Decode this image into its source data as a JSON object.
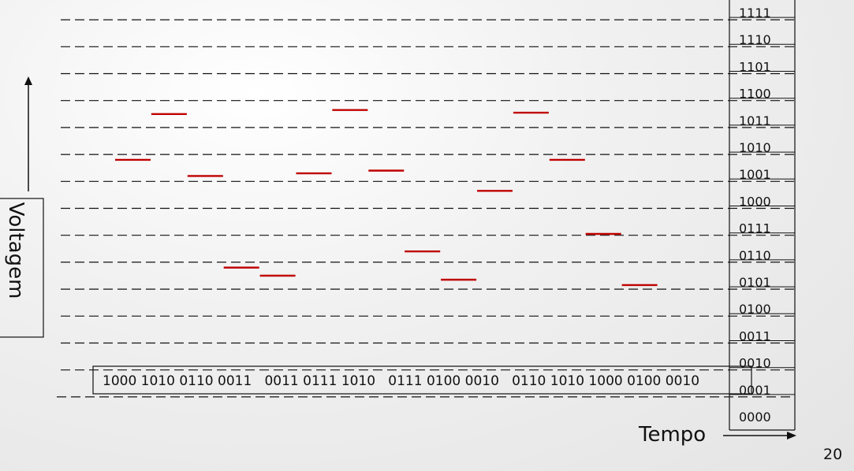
{
  "levels": [
    "0000",
    "0001",
    "0010",
    "0011",
    "0100",
    "0101",
    "0110",
    "0111",
    "1000",
    "1001",
    "1010",
    "1011",
    "1100",
    "1101",
    "1110",
    "1111"
  ],
  "samples": [
    {
      "value": 9.3
    },
    {
      "value": 11.0
    },
    {
      "value": 8.7
    },
    {
      "value": 5.3
    },
    {
      "value": 5.0
    },
    {
      "value": 8.8
    },
    {
      "value": 11.15
    },
    {
      "value": 8.9
    },
    {
      "value": 5.9
    },
    {
      "value": 4.85
    },
    {
      "value": 8.15
    },
    {
      "value": 11.05
    },
    {
      "value": 9.3
    },
    {
      "value": 6.55
    },
    {
      "value": 4.65
    }
  ],
  "bit_stream": "1000 1010 0110 0011   0011 0111 1010   0111 0100 0010   0110 1010 1000 0100 0010",
  "y_axis_label": "Voltagem",
  "x_axis_label": "Tempo",
  "page_number": "20",
  "colors": {
    "sample": "#c00000",
    "line": "#111111"
  }
}
